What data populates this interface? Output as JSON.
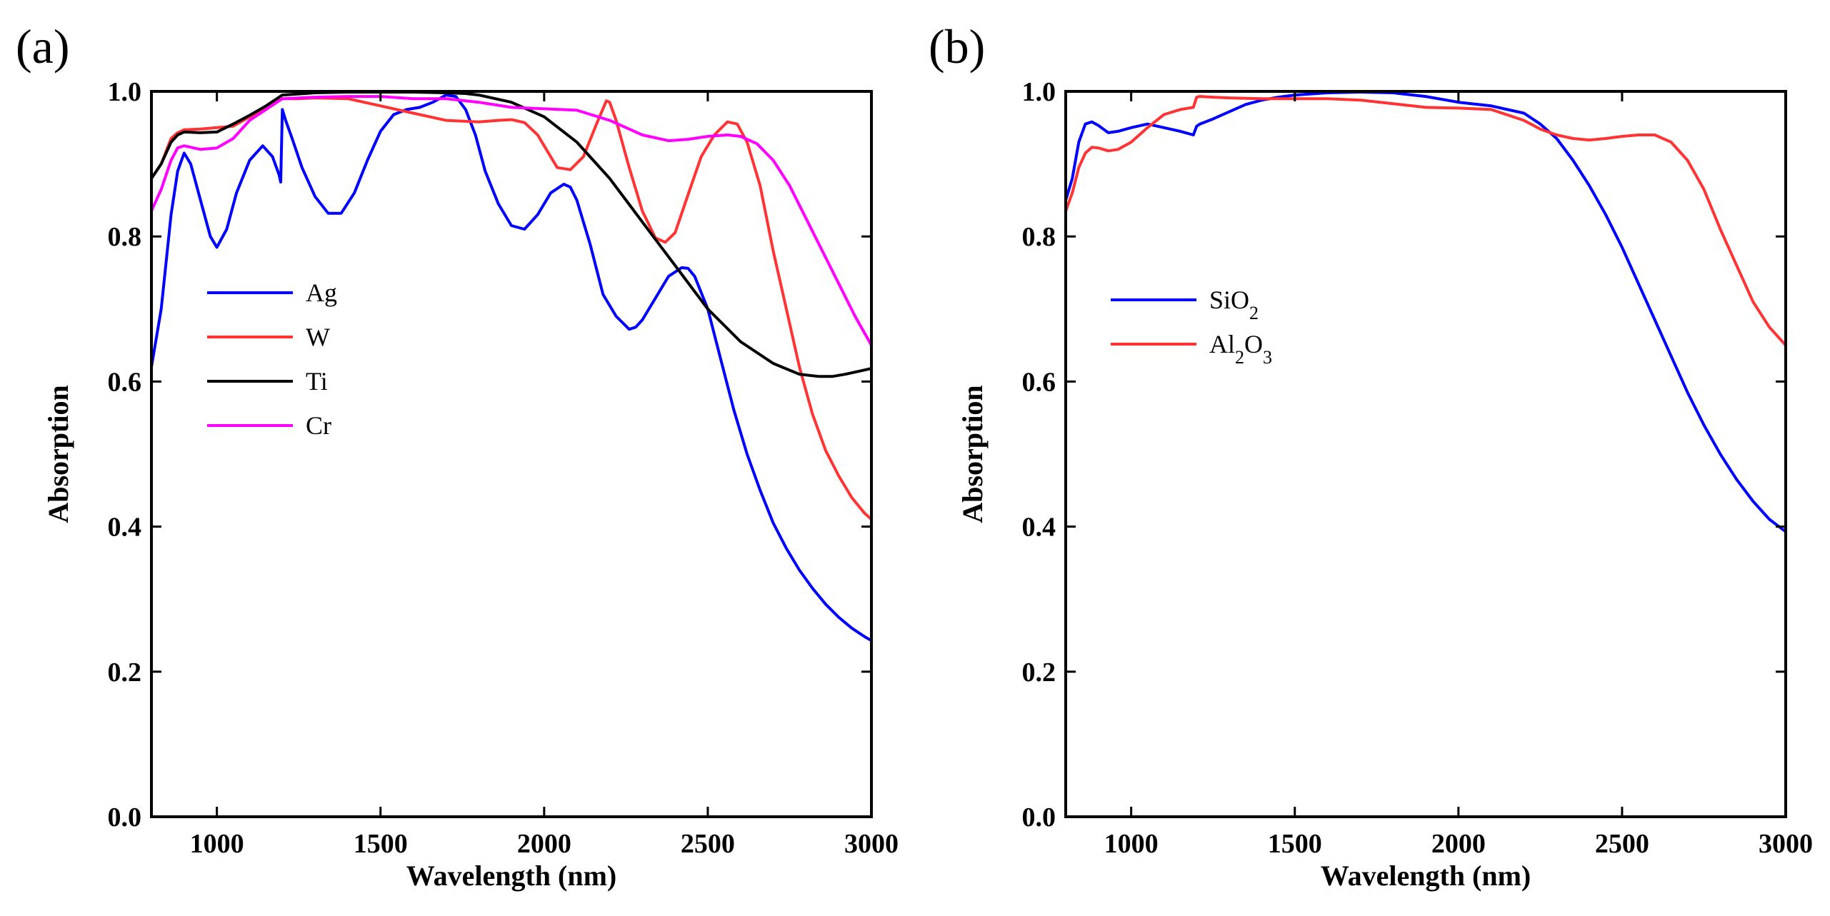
{
  "chart_data": [
    {
      "panel_label": "(a)",
      "type": "line",
      "xlabel": "Wavelength (nm)",
      "ylabel": "Absorption",
      "xlim": [
        800,
        3000
      ],
      "ylim": [
        0.0,
        1.0
      ],
      "xticks": [
        1000,
        1500,
        2000,
        2500,
        3000
      ],
      "xtick_labels": [
        "1000",
        "1500",
        "2000",
        "2500",
        "3000"
      ],
      "yticks": [
        0.0,
        0.2,
        0.4,
        0.6,
        0.8,
        1.0
      ],
      "ytick_labels": [
        "0.0",
        "0.2",
        "0.4",
        "0.6",
        "0.8",
        "1.0"
      ],
      "legend_position": "center-left",
      "series": [
        {
          "name": "Ag",
          "name_sub": "",
          "color": "#0000ff",
          "x": [
            800,
            830,
            860,
            880,
            900,
            920,
            950,
            980,
            1000,
            1030,
            1060,
            1100,
            1140,
            1170,
            1190,
            1195,
            1200,
            1210,
            1230,
            1260,
            1300,
            1340,
            1380,
            1420,
            1460,
            1500,
            1540,
            1580,
            1620,
            1660,
            1700,
            1730,
            1760,
            1790,
            1820,
            1860,
            1900,
            1940,
            1980,
            2020,
            2060,
            2080,
            2100,
            2140,
            2180,
            2220,
            2260,
            2280,
            2300,
            2340,
            2380,
            2420,
            2440,
            2460,
            2500,
            2540,
            2580,
            2620,
            2660,
            2700,
            2740,
            2780,
            2820,
            2860,
            2900,
            2940,
            2980,
            3000
          ],
          "y": [
            0.62,
            0.7,
            0.83,
            0.89,
            0.915,
            0.9,
            0.85,
            0.8,
            0.785,
            0.81,
            0.86,
            0.905,
            0.925,
            0.91,
            0.885,
            0.875,
            0.975,
            0.96,
            0.935,
            0.895,
            0.855,
            0.832,
            0.832,
            0.86,
            0.905,
            0.945,
            0.968,
            0.975,
            0.978,
            0.985,
            0.995,
            0.993,
            0.975,
            0.94,
            0.89,
            0.845,
            0.815,
            0.81,
            0.83,
            0.86,
            0.872,
            0.868,
            0.85,
            0.79,
            0.72,
            0.69,
            0.672,
            0.675,
            0.685,
            0.715,
            0.745,
            0.757,
            0.756,
            0.745,
            0.7,
            0.63,
            0.56,
            0.5,
            0.45,
            0.405,
            0.37,
            0.34,
            0.315,
            0.293,
            0.275,
            0.26,
            0.248,
            0.243
          ]
        },
        {
          "name": "W",
          "name_sub": "",
          "color": "#ff3333",
          "x": [
            800,
            830,
            860,
            880,
            900,
            950,
            1000,
            1050,
            1100,
            1150,
            1200,
            1250,
            1300,
            1400,
            1500,
            1600,
            1700,
            1800,
            1860,
            1900,
            1940,
            1980,
            2000,
            2040,
            2080,
            2120,
            2160,
            2190,
            2200,
            2220,
            2260,
            2300,
            2340,
            2370,
            2400,
            2440,
            2480,
            2520,
            2560,
            2590,
            2620,
            2660,
            2700,
            2740,
            2780,
            2820,
            2860,
            2900,
            2940,
            2980,
            3000
          ],
          "y": [
            0.88,
            0.9,
            0.935,
            0.943,
            0.947,
            0.948,
            0.95,
            0.952,
            0.965,
            0.978,
            0.99,
            0.99,
            0.991,
            0.99,
            0.98,
            0.97,
            0.96,
            0.958,
            0.96,
            0.961,
            0.957,
            0.94,
            0.925,
            0.895,
            0.892,
            0.91,
            0.955,
            0.987,
            0.985,
            0.96,
            0.895,
            0.835,
            0.798,
            0.792,
            0.805,
            0.858,
            0.91,
            0.94,
            0.958,
            0.955,
            0.93,
            0.87,
            0.78,
            0.7,
            0.62,
            0.555,
            0.505,
            0.47,
            0.44,
            0.418,
            0.41
          ]
        },
        {
          "name": "Ti",
          "name_sub": "",
          "color": "#000000",
          "x": [
            800,
            830,
            860,
            880,
            900,
            950,
            1000,
            1050,
            1100,
            1150,
            1200,
            1300,
            1400,
            1500,
            1600,
            1700,
            1760,
            1800,
            1900,
            2000,
            2100,
            2200,
            2300,
            2400,
            2500,
            2600,
            2700,
            2780,
            2840,
            2880,
            2920,
            2960,
            3000
          ],
          "y": [
            0.88,
            0.9,
            0.93,
            0.94,
            0.944,
            0.943,
            0.944,
            0.955,
            0.967,
            0.98,
            0.995,
            0.998,
            0.999,
            0.999,
            0.999,
            0.998,
            0.997,
            0.995,
            0.985,
            0.965,
            0.93,
            0.88,
            0.82,
            0.76,
            0.7,
            0.655,
            0.625,
            0.61,
            0.607,
            0.607,
            0.61,
            0.614,
            0.618
          ]
        },
        {
          "name": "Cr",
          "name_sub": "",
          "color": "#ff00ff",
          "x": [
            800,
            830,
            860,
            880,
            900,
            950,
            1000,
            1050,
            1100,
            1150,
            1200,
            1300,
            1400,
            1500,
            1600,
            1700,
            1800,
            1900,
            2000,
            2100,
            2200,
            2300,
            2380,
            2440,
            2500,
            2560,
            2600,
            2650,
            2700,
            2750,
            2800,
            2850,
            2900,
            2950,
            3000
          ],
          "y": [
            0.835,
            0.865,
            0.905,
            0.922,
            0.925,
            0.92,
            0.922,
            0.935,
            0.96,
            0.975,
            0.99,
            0.992,
            0.993,
            0.993,
            0.99,
            0.99,
            0.985,
            0.978,
            0.976,
            0.974,
            0.96,
            0.94,
            0.932,
            0.934,
            0.938,
            0.94,
            0.938,
            0.928,
            0.905,
            0.87,
            0.825,
            0.78,
            0.735,
            0.69,
            0.65
          ]
        }
      ]
    },
    {
      "panel_label": "(b)",
      "type": "line",
      "xlabel": "Wavelength (nm)",
      "ylabel": "Absorption",
      "xlim": [
        800,
        3000
      ],
      "ylim": [
        0.0,
        1.0
      ],
      "xticks": [
        1000,
        1500,
        2000,
        2500,
        3000
      ],
      "xtick_labels": [
        "1000",
        "1500",
        "2000",
        "2500",
        "3000"
      ],
      "yticks": [
        0.0,
        0.2,
        0.4,
        0.6,
        0.8,
        1.0
      ],
      "ytick_labels": [
        "0.0",
        "0.2",
        "0.4",
        "0.6",
        "0.8",
        "1.0"
      ],
      "legend_position": "center-left",
      "series": [
        {
          "name": "SiO",
          "name_sub": "2",
          "color": "#0000ff",
          "x": [
            800,
            820,
            840,
            860,
            880,
            900,
            930,
            960,
            1000,
            1050,
            1100,
            1150,
            1190,
            1200,
            1210,
            1250,
            1300,
            1350,
            1400,
            1450,
            1500,
            1600,
            1700,
            1800,
            1900,
            2000,
            2100,
            2200,
            2250,
            2300,
            2350,
            2400,
            2450,
            2500,
            2550,
            2600,
            2650,
            2700,
            2750,
            2800,
            2850,
            2900,
            2950,
            3000
          ],
          "y": [
            0.85,
            0.88,
            0.93,
            0.955,
            0.958,
            0.953,
            0.943,
            0.945,
            0.95,
            0.955,
            0.95,
            0.945,
            0.94,
            0.952,
            0.955,
            0.962,
            0.972,
            0.982,
            0.988,
            0.992,
            0.995,
            0.998,
            0.999,
            0.998,
            0.993,
            0.985,
            0.98,
            0.97,
            0.955,
            0.935,
            0.905,
            0.87,
            0.83,
            0.785,
            0.735,
            0.685,
            0.635,
            0.585,
            0.54,
            0.5,
            0.465,
            0.435,
            0.41,
            0.393
          ]
        },
        {
          "name": "Al",
          "name_sub": "2",
          "name_suffix": "O",
          "name_sub2": "3",
          "color": "#ff3333",
          "x": [
            800,
            820,
            840,
            860,
            880,
            900,
            930,
            960,
            1000,
            1050,
            1100,
            1150,
            1190,
            1200,
            1210,
            1250,
            1300,
            1400,
            1500,
            1600,
            1700,
            1800,
            1900,
            2000,
            2100,
            2200,
            2250,
            2300,
            2350,
            2400,
            2450,
            2500,
            2550,
            2600,
            2650,
            2700,
            2750,
            2800,
            2850,
            2900,
            2950,
            3000
          ],
          "y": [
            0.835,
            0.86,
            0.895,
            0.915,
            0.923,
            0.922,
            0.918,
            0.92,
            0.93,
            0.95,
            0.968,
            0.975,
            0.978,
            0.992,
            0.993,
            0.992,
            0.991,
            0.99,
            0.99,
            0.99,
            0.988,
            0.983,
            0.978,
            0.977,
            0.975,
            0.96,
            0.948,
            0.94,
            0.935,
            0.933,
            0.935,
            0.938,
            0.94,
            0.94,
            0.93,
            0.905,
            0.865,
            0.81,
            0.76,
            0.71,
            0.675,
            0.65
          ]
        }
      ]
    }
  ]
}
